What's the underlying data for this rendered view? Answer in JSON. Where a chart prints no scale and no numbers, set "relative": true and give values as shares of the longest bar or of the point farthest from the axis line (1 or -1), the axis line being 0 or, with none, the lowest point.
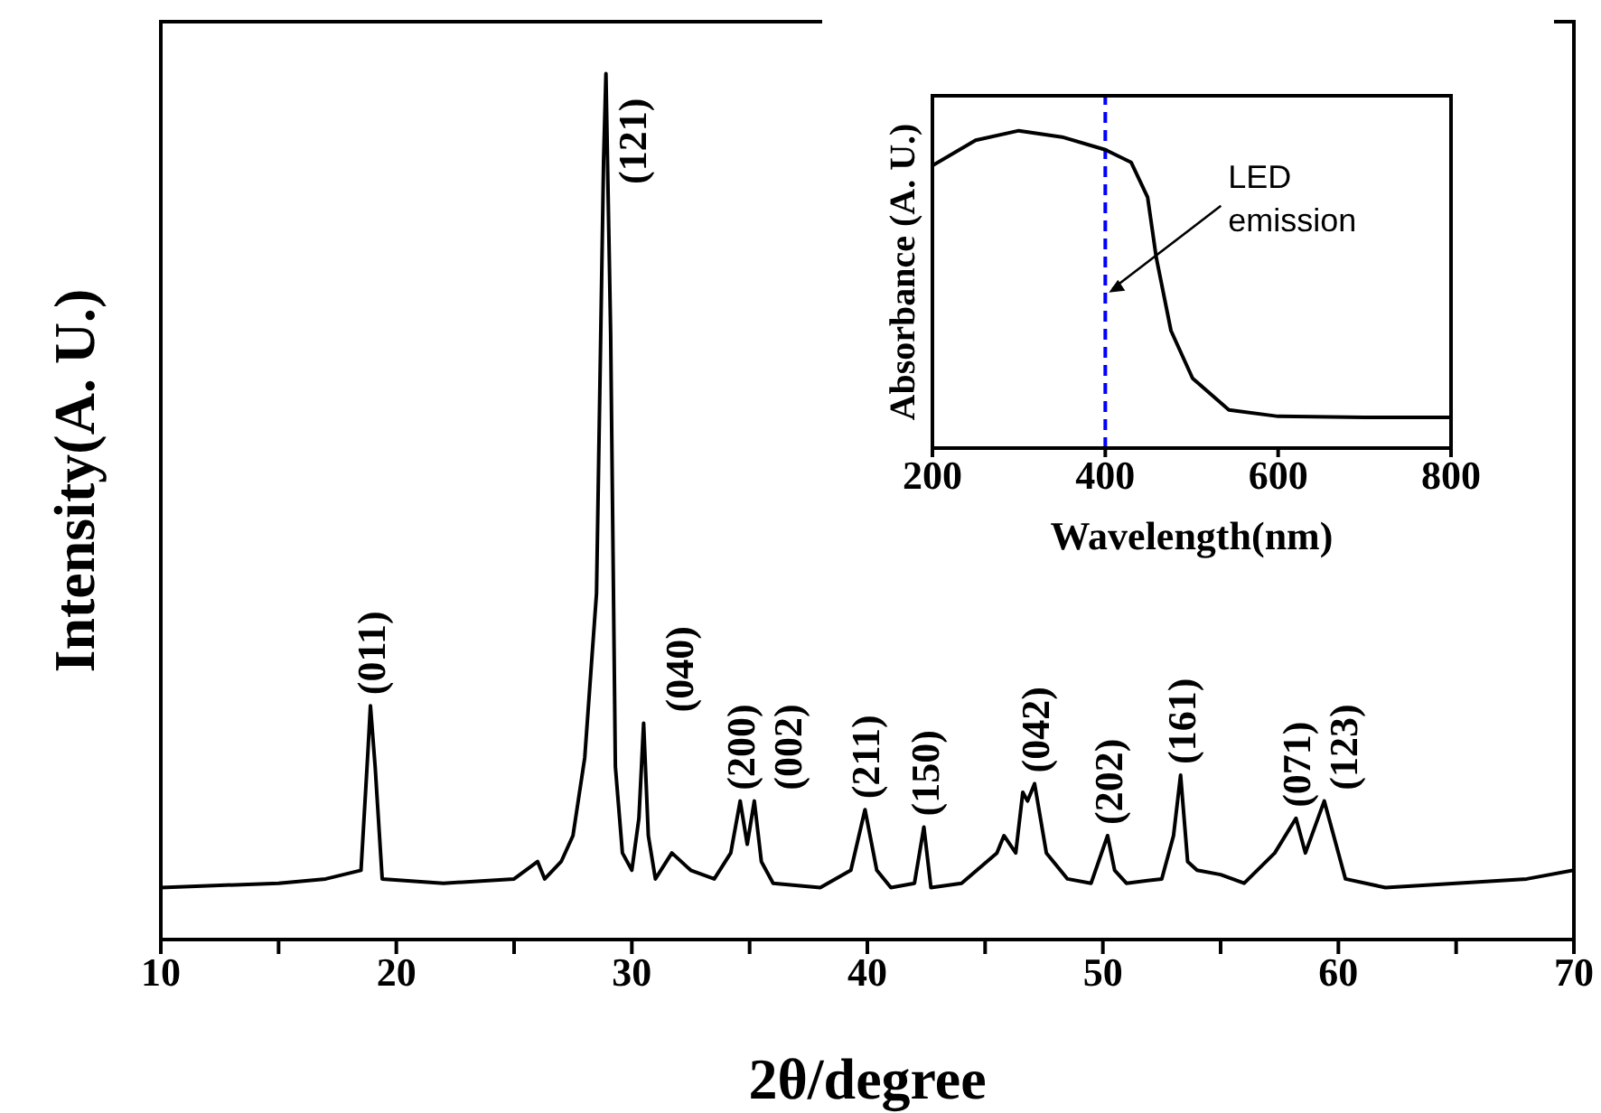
{
  "chart_data": [
    {
      "type": "line",
      "xlabel": "2θ/degree",
      "ylabel": "Intensity(A. U.)",
      "relative": true,
      "xlim": [
        10,
        70
      ],
      "xticks": [
        10,
        {
          "value": 15,
          "label": null
        },
        20,
        {
          "value": 25,
          "label": null
        },
        30,
        {
          "value": 35,
          "label": null
        },
        40,
        {
          "value": 45,
          "label": null
        },
        50,
        {
          "value": 55,
          "label": null
        },
        60,
        {
          "value": 65,
          "label": null
        },
        70
      ],
      "series": [
        {
          "color": "#000000",
          "x": [
            10,
            15,
            17,
            18.5,
            18.8,
            18.9,
            19.1,
            19.4,
            22,
            25,
            26,
            26.3,
            27,
            27.5,
            28,
            28.5,
            28.8,
            28.9,
            29.1,
            29.3,
            29.6,
            30,
            30.3,
            30.5,
            30.7,
            31,
            31.7,
            32.5,
            33.5,
            34.2,
            34.6,
            34.9,
            35.2,
            35.5,
            36,
            38,
            39.3,
            39.9,
            40.4,
            41,
            42,
            42.4,
            42.7,
            44,
            45.5,
            45.8,
            46.3,
            46.6,
            46.8,
            47.1,
            47.6,
            48.5,
            49.5,
            50.2,
            50.5,
            51,
            52.5,
            53,
            53.3,
            53.6,
            54,
            55,
            56,
            57.3,
            58.2,
            58.6,
            59,
            59.4,
            59.8,
            60.3,
            62,
            65,
            68,
            70
          ],
          "values": [
            0.06,
            0.065,
            0.07,
            0.08,
            0.22,
            0.27,
            0.2,
            0.07,
            0.065,
            0.07,
            0.09,
            0.07,
            0.09,
            0.12,
            0.21,
            0.4,
            0.9,
            1,
            0.7,
            0.2,
            0.1,
            0.08,
            0.14,
            0.25,
            0.12,
            0.07,
            0.1,
            0.08,
            0.07,
            0.1,
            0.16,
            0.11,
            0.16,
            0.09,
            0.065,
            0.06,
            0.08,
            0.15,
            0.08,
            0.06,
            0.065,
            0.13,
            0.06,
            0.065,
            0.1,
            0.12,
            0.1,
            0.17,
            0.16,
            0.18,
            0.1,
            0.07,
            0.065,
            0.12,
            0.08,
            0.065,
            0.07,
            0.12,
            0.19,
            0.09,
            0.08,
            0.075,
            0.065,
            0.1,
            0.14,
            0.1,
            0.13,
            0.16,
            0.12,
            0.07,
            0.06,
            0.065,
            0.07,
            0.08
          ]
        }
      ],
      "annotations": [
        {
          "text": "(011)",
          "x": 18.9,
          "y": 0.27
        },
        {
          "text": "(121)",
          "x": 28.9,
          "y": 1
        },
        {
          "text": "(040)",
          "x": 30.5,
          "y": 0.25
        },
        {
          "text": "(200)",
          "x": 34.6,
          "y": 0.16
        },
        {
          "text": "(002)",
          "x": 35.2,
          "y": 0.16
        },
        {
          "text": "(211)",
          "x": 39.9,
          "y": 0.15
        },
        {
          "text": "(150)",
          "x": 42.4,
          "y": 0.13
        },
        {
          "text": "(042)",
          "x": 47.1,
          "y": 0.18
        },
        {
          "text": "(202)",
          "x": 50.2,
          "y": 0.12
        },
        {
          "text": "(161)",
          "x": 53.3,
          "y": 0.19
        },
        {
          "text": "(071)",
          "x": 58.2,
          "y": 0.14
        },
        {
          "text": "(123)",
          "x": 59.4,
          "y": 0.16
        }
      ]
    },
    {
      "type": "line",
      "xlabel": "Wavelength(nm)",
      "ylabel": "Absorbance (A. U.)",
      "relative": true,
      "xlim": [
        200,
        800
      ],
      "xticks": [
        200,
        400,
        600,
        800
      ],
      "series": [
        {
          "color": "#000000",
          "x": [
            200,
            250,
            300,
            350,
            400,
            430,
            449,
            459,
            476,
            501,
            543,
            600,
            700,
            800
          ],
          "values": [
            0.89,
            0.97,
            1,
            0.98,
            0.94,
            0.9,
            0.79,
            0.6,
            0.37,
            0.22,
            0.12,
            0.1,
            0.097,
            0.097
          ]
        }
      ],
      "ref_lines": [
        {
          "axis": "x",
          "value": 400,
          "color": "#0000ff",
          "line_style": "dashed"
        }
      ],
      "annotations": [
        {
          "text": "LED emission",
          "x": 400,
          "y": 0.49
        }
      ]
    }
  ]
}
